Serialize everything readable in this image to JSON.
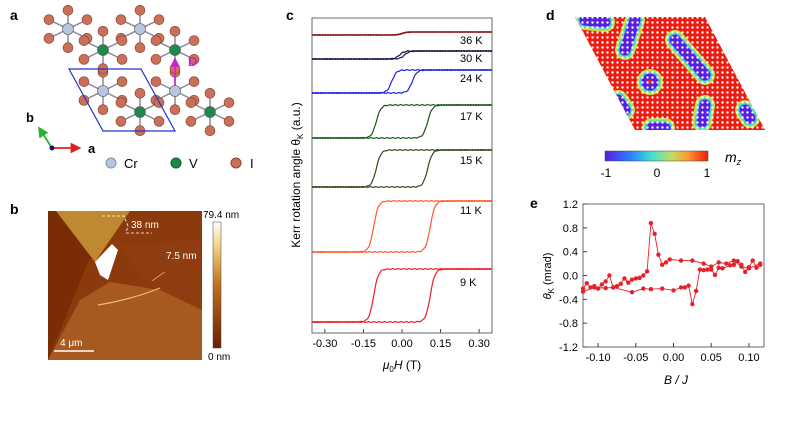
{
  "panel_labels": {
    "a": "a",
    "b": "b",
    "c": "c",
    "d": "d",
    "e": "e"
  },
  "panel_a": {
    "axis_a": "a",
    "axis_b": "b",
    "vector_label": "D",
    "legend": [
      {
        "label": "Cr",
        "color": "#b8c4e0"
      },
      {
        "label": "V",
        "color": "#1e8a4a"
      },
      {
        "label": "I",
        "color": "#c8705a"
      }
    ],
    "unit_cell_color": "#2233cc",
    "vector_color": "#cc22cc"
  },
  "panel_b": {
    "step_label_1": "38 nm",
    "step_label_2": "7.5 nm",
    "scale_bar": "4 μm",
    "colorbar_max": "79.4 nm",
    "colorbar_min": "0 nm"
  },
  "panel_d": {
    "colorbar_label": "m",
    "colorbar_label_sub": "z",
    "colorbar_ticks": [
      "-1",
      "0",
      "1"
    ]
  },
  "chart_data": [
    {
      "panel": "c",
      "type": "line",
      "xlabel_main": "μ",
      "xlabel_sub": "0",
      "xlabel_rest": "H (T)",
      "ylabel_main": "Kerr rotation angle  θ",
      "ylabel_sub": "K",
      "ylabel_rest": " (a.u.)",
      "xlim": [
        -0.35,
        0.35
      ],
      "xticks": [
        "-0.30",
        "-0.15",
        "0.00",
        "0.15",
        "0.30"
      ],
      "xtick_values": [
        -0.3,
        -0.15,
        0.0,
        0.15,
        0.3
      ],
      "series": [
        {
          "name": "36 K",
          "color": "#8b1c1c",
          "coercive_field_T": 0.0,
          "amplitude_au": 0.1
        },
        {
          "name": "30 K",
          "color": "#14184a",
          "coercive_field_T": 0.01,
          "amplitude_au": 0.25
        },
        {
          "name": "24 K",
          "color": "#2020e6",
          "coercive_field_T": 0.04,
          "amplitude_au": 0.7
        },
        {
          "name": "17 K",
          "color": "#165a16",
          "coercive_field_T": 0.1,
          "amplitude_au": 1.0
        },
        {
          "name": "15 K",
          "color": "#2f4a16",
          "coercive_field_T": 0.1,
          "amplitude_au": 1.1
        },
        {
          "name": "11 K",
          "color": "#ff5a2a",
          "coercive_field_T": 0.11,
          "amplitude_au": 1.5
        },
        {
          "name": "9 K",
          "color": "#ee1c24",
          "coercive_field_T": 0.11,
          "amplitude_au": 1.6
        }
      ]
    },
    {
      "panel": "e",
      "type": "scatter",
      "xlabel": "B / J",
      "ylabel_main": "θ",
      "ylabel_sub": "K",
      "ylabel_rest": " (mrad)",
      "xlim": [
        -0.12,
        0.12
      ],
      "ylim": [
        -1.2,
        1.2
      ],
      "xticks": [
        "-0.10",
        "-0.05",
        "0.00",
        "0.05",
        "0.10"
      ],
      "xtick_values": [
        -0.1,
        -0.05,
        0.0,
        0.05,
        0.1
      ],
      "yticks": [
        "1.2",
        "0.8",
        "0.4",
        "0.0",
        "-0.4",
        "-0.8",
        "-1.2"
      ],
      "ytick_values": [
        1.2,
        0.8,
        0.4,
        0.0,
        -0.4,
        -0.8,
        -1.2
      ],
      "color": "#e8202a",
      "series": [
        {
          "x": [
            -0.12,
            -0.115,
            -0.11,
            -0.105,
            -0.1,
            -0.095,
            -0.09,
            -0.085,
            -0.08,
            -0.075,
            -0.07,
            -0.065,
            -0.06,
            -0.055,
            -0.05,
            -0.045,
            -0.04,
            -0.035,
            -0.03,
            -0.025,
            -0.02,
            -0.015,
            -0.01,
            -0.005,
            0.01,
            0.025,
            0.04,
            0.05,
            0.06,
            0.07,
            0.08,
            0.09,
            0.1,
            0.115
          ],
          "y": [
            -0.22,
            -0.13,
            -0.2,
            -0.18,
            -0.22,
            -0.15,
            -0.1,
            0.0,
            -0.2,
            -0.18,
            -0.14,
            -0.05,
            -0.12,
            -0.07,
            -0.05,
            -0.04,
            0.0,
            0.07,
            0.88,
            0.7,
            0.35,
            0.18,
            0.22,
            0.27,
            0.25,
            0.25,
            0.2,
            0.15,
            0.22,
            0.2,
            0.25,
            0.15,
            0.12,
            0.2
          ]
        },
        {
          "x": [
            0.115,
            0.11,
            0.105,
            0.1,
            0.095,
            0.09,
            0.085,
            0.08,
            0.075,
            0.065,
            0.06,
            0.055,
            0.05,
            0.045,
            0.04,
            0.035,
            0.03,
            0.025,
            0.02,
            0.015,
            0.01,
            0.0,
            -0.015,
            -0.03,
            -0.04,
            -0.055,
            -0.08,
            -0.09,
            -0.105,
            -0.12
          ],
          "y": [
            0.18,
            0.13,
            0.25,
            0.14,
            0.06,
            0.18,
            0.24,
            0.18,
            0.17,
            0.12,
            0.13,
            0.01,
            0.1,
            0.1,
            0.09,
            0.1,
            -0.26,
            -0.48,
            -0.17,
            -0.2,
            -0.2,
            -0.25,
            -0.22,
            -0.23,
            -0.22,
            -0.28,
            -0.2,
            -0.21,
            -0.2,
            -0.27
          ]
        }
      ]
    }
  ]
}
